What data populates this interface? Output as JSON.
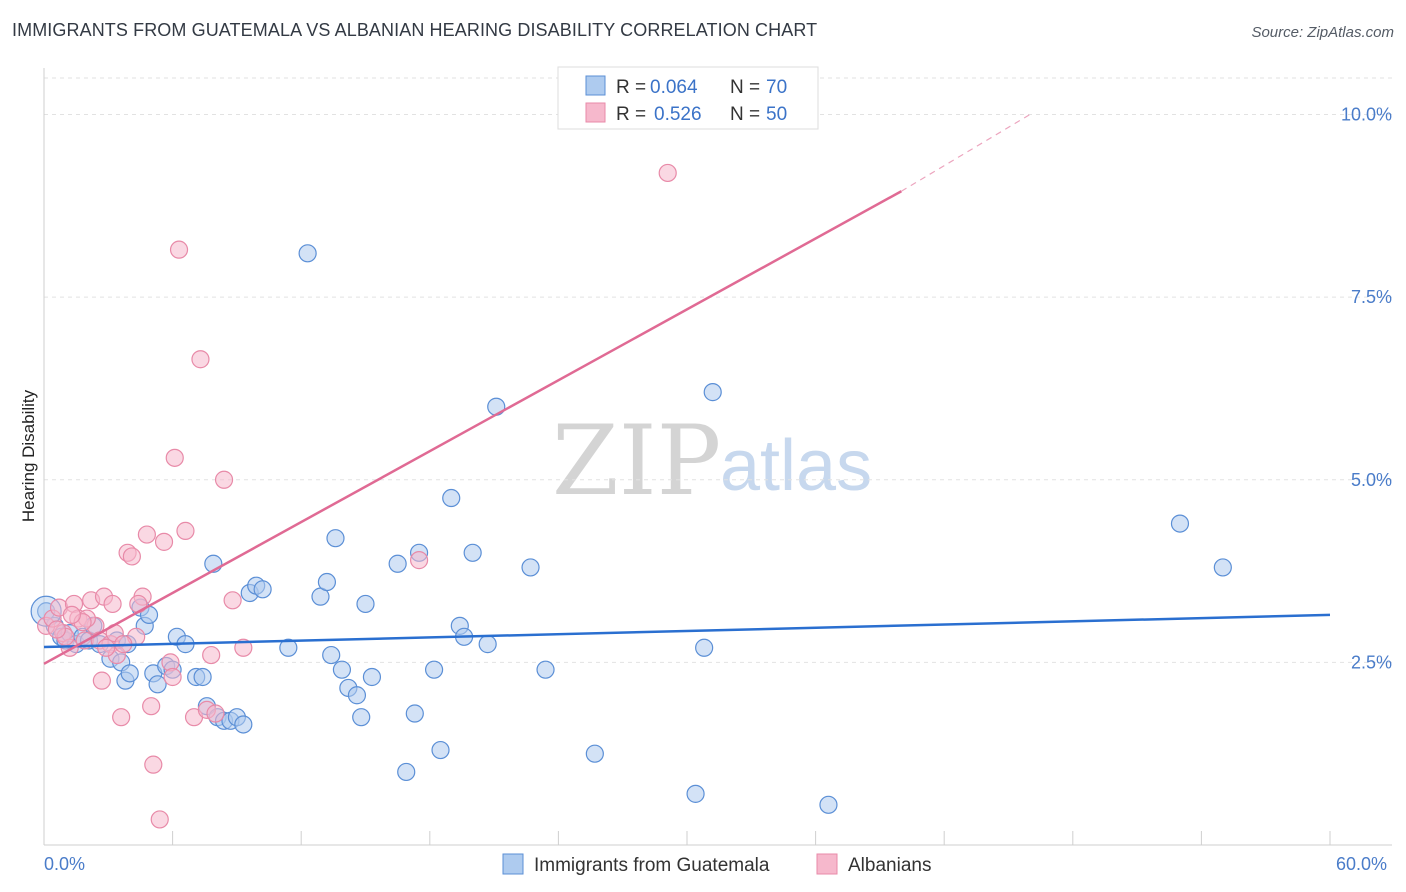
{
  "header": {
    "title": "IMMIGRANTS FROM GUATEMALA VS ALBANIAN HEARING DISABILITY CORRELATION CHART",
    "source": "Source: ZipAtlas.com"
  },
  "watermark": {
    "zip": "ZIP",
    "atlas": "atlas"
  },
  "colors": {
    "blue_fill": "#aecbef",
    "blue_stroke": "#5b8fd6",
    "blue_line": "#2a6fd0",
    "pink_fill": "#f6b8cc",
    "pink_stroke": "#e88aa8",
    "pink_line": "#e06a94"
  },
  "legend": {
    "rows": [
      {
        "r_label": "R = ",
        "r_value": "0.064",
        "n_label": "N = ",
        "n_value": "70"
      },
      {
        "r_label": "R = ",
        "r_value": "0.526",
        "n_label": "N = ",
        "n_value": "50"
      }
    ]
  },
  "chart_data": {
    "type": "scatter",
    "title": "IMMIGRANTS FROM GUATEMALA VS ALBANIAN HEARING DISABILITY CORRELATION CHART",
    "xlabel": "",
    "ylabel": "Hearing Disability",
    "xlim": [
      0,
      60
    ],
    "ylim": [
      0,
      10.5
    ],
    "x_tick_labels": [
      "0.0%",
      "60.0%"
    ],
    "y_ticks": [
      2.5,
      5.0,
      7.5,
      10.0
    ],
    "y_tick_labels": [
      "2.5%",
      "5.0%",
      "7.5%",
      "10.0%"
    ],
    "grid": "horizontal dashed",
    "legend_position": "top-center",
    "series": [
      {
        "name": "Immigrants from Guatemala",
        "R": 0.064,
        "N": 70,
        "trend": {
          "x0": 0,
          "y0": 2.71,
          "x1": 60,
          "y1": 3.15
        },
        "points": [
          [
            0.1,
            3.2
          ],
          [
            0.5,
            3.0
          ],
          [
            0.8,
            2.85
          ],
          [
            1.0,
            2.8
          ],
          [
            1.2,
            2.9
          ],
          [
            1.5,
            2.75
          ],
          [
            1.8,
            2.85
          ],
          [
            2.1,
            2.8
          ],
          [
            2.3,
            3.0
          ],
          [
            2.6,
            2.75
          ],
          [
            3.1,
            2.55
          ],
          [
            3.4,
            2.8
          ],
          [
            3.6,
            2.5
          ],
          [
            3.8,
            2.25
          ],
          [
            3.9,
            2.75
          ],
          [
            4.0,
            2.35
          ],
          [
            4.5,
            3.25
          ],
          [
            4.7,
            3.0
          ],
          [
            4.9,
            3.15
          ],
          [
            5.1,
            2.35
          ],
          [
            5.3,
            2.2
          ],
          [
            5.7,
            2.45
          ],
          [
            6.0,
            2.4
          ],
          [
            6.2,
            2.85
          ],
          [
            6.6,
            2.75
          ],
          [
            7.1,
            2.3
          ],
          [
            7.4,
            2.3
          ],
          [
            7.6,
            1.9
          ],
          [
            7.9,
            3.85
          ],
          [
            8.1,
            1.75
          ],
          [
            8.4,
            1.7
          ],
          [
            8.7,
            1.7
          ],
          [
            9.0,
            1.75
          ],
          [
            9.3,
            1.65
          ],
          [
            9.6,
            3.45
          ],
          [
            9.9,
            3.55
          ],
          [
            12.3,
            8.1
          ],
          [
            12.9,
            3.4
          ],
          [
            13.2,
            3.6
          ],
          [
            13.4,
            2.6
          ],
          [
            13.6,
            4.2
          ],
          [
            13.9,
            2.4
          ],
          [
            14.2,
            2.15
          ],
          [
            14.6,
            2.05
          ],
          [
            14.8,
            1.75
          ],
          [
            15.0,
            3.3
          ],
          [
            15.3,
            2.3
          ],
          [
            16.5,
            3.85
          ],
          [
            16.9,
            1.0
          ],
          [
            17.3,
            1.8
          ],
          [
            17.5,
            4.0
          ],
          [
            18.2,
            2.4
          ],
          [
            18.5,
            1.3
          ],
          [
            19.0,
            4.75
          ],
          [
            19.4,
            3.0
          ],
          [
            19.6,
            2.85
          ],
          [
            20.0,
            4.0
          ],
          [
            20.7,
            2.75
          ],
          [
            21.1,
            6.0
          ],
          [
            22.7,
            3.8
          ],
          [
            23.4,
            2.4
          ],
          [
            25.7,
            1.25
          ],
          [
            30.4,
            0.7
          ],
          [
            30.8,
            2.7
          ],
          [
            31.2,
            6.2
          ],
          [
            36.6,
            0.55
          ],
          [
            55.0,
            3.8
          ],
          [
            53.0,
            4.4
          ],
          [
            10.2,
            3.5
          ],
          [
            11.4,
            2.7
          ]
        ]
      },
      {
        "name": "Albanians",
        "R": 0.526,
        "N": 50,
        "trend": {
          "x0": 0,
          "y0": 2.48,
          "x1": 40,
          "y1": 8.95,
          "dash_x1": 46,
          "dash_y1": 10.0
        },
        "points": [
          [
            0.1,
            3.0
          ],
          [
            0.4,
            3.1
          ],
          [
            0.7,
            3.25
          ],
          [
            0.9,
            2.9
          ],
          [
            1.2,
            2.7
          ],
          [
            1.4,
            3.3
          ],
          [
            1.6,
            3.1
          ],
          [
            1.9,
            2.8
          ],
          [
            2.2,
            3.35
          ],
          [
            2.4,
            3.0
          ],
          [
            2.6,
            2.8
          ],
          [
            2.8,
            3.4
          ],
          [
            3.1,
            2.75
          ],
          [
            3.3,
            2.9
          ],
          [
            3.4,
            2.6
          ],
          [
            3.6,
            1.75
          ],
          [
            3.9,
            4.0
          ],
          [
            4.1,
            3.95
          ],
          [
            4.3,
            2.85
          ],
          [
            4.6,
            3.4
          ],
          [
            4.8,
            4.25
          ],
          [
            5.1,
            1.1
          ],
          [
            5.4,
            0.35
          ],
          [
            5.6,
            4.15
          ],
          [
            5.9,
            2.5
          ],
          [
            6.1,
            5.3
          ],
          [
            6.3,
            8.15
          ],
          [
            6.6,
            4.3
          ],
          [
            7.0,
            1.75
          ],
          [
            7.3,
            6.65
          ],
          [
            7.6,
            1.85
          ],
          [
            8.0,
            1.8
          ],
          [
            8.4,
            5.0
          ],
          [
            8.8,
            3.35
          ],
          [
            9.3,
            2.7
          ],
          [
            2.0,
            3.1
          ],
          [
            2.9,
            2.7
          ],
          [
            3.7,
            2.75
          ],
          [
            1.0,
            2.85
          ],
          [
            1.8,
            3.05
          ],
          [
            2.7,
            2.25
          ],
          [
            4.4,
            3.3
          ],
          [
            5.0,
            1.9
          ],
          [
            6.0,
            2.3
          ],
          [
            7.8,
            2.6
          ],
          [
            17.5,
            3.9
          ],
          [
            29.1,
            9.2
          ],
          [
            3.2,
            3.3
          ],
          [
            0.6,
            2.95
          ],
          [
            1.3,
            3.15
          ]
        ]
      }
    ]
  }
}
